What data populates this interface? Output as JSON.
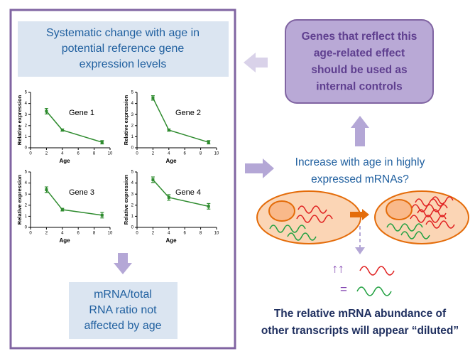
{
  "left_panel": {
    "title_lines": [
      "Systematic change with age in",
      "potential reference gene",
      "expression levels"
    ],
    "result_lines": [
      "mRNA/total",
      "RNA ratio not",
      "affected by age"
    ]
  },
  "chart_data": [
    {
      "type": "line",
      "title": "Gene 1",
      "x_label": "Age",
      "y_label": "Relative expression",
      "x": [
        2,
        4,
        9
      ],
      "values": [
        3.3,
        1.6,
        0.5
      ],
      "errors": [
        0.25,
        0.1,
        0.15
      ],
      "color": "#2e8b2e",
      "xlim": [
        0,
        10
      ],
      "ylim": [
        0,
        5
      ],
      "xticks": [
        0,
        2,
        4,
        6,
        8,
        10
      ],
      "yticks": [
        0,
        1,
        2,
        3,
        4,
        5
      ]
    },
    {
      "type": "line",
      "title": "Gene 2",
      "x_label": "Age",
      "y_label": "Relative expression",
      "x": [
        2,
        4,
        9
      ],
      "values": [
        4.5,
        1.6,
        0.5
      ],
      "errors": [
        0.2,
        0.1,
        0.15
      ],
      "color": "#2e8b2e",
      "xlim": [
        0,
        10
      ],
      "ylim": [
        0,
        5
      ],
      "xticks": [
        0,
        2,
        4,
        6,
        8,
        10
      ],
      "yticks": [
        0,
        1,
        2,
        3,
        4,
        5
      ]
    },
    {
      "type": "line",
      "title": "Gene 3",
      "x_label": "Age",
      "y_label": "Relative expression",
      "x": [
        2,
        4,
        9
      ],
      "values": [
        3.4,
        1.6,
        1.1
      ],
      "errors": [
        0.25,
        0.12,
        0.25
      ],
      "color": "#2e8b2e",
      "xlim": [
        0,
        10
      ],
      "ylim": [
        0,
        5
      ],
      "xticks": [
        0,
        2,
        4,
        6,
        8,
        10
      ],
      "yticks": [
        0,
        1,
        2,
        3,
        4,
        5
      ]
    },
    {
      "type": "line",
      "title": "Gene 4",
      "x_label": "Age",
      "y_label": "Relative expression",
      "x": [
        2,
        4,
        9
      ],
      "values": [
        4.3,
        2.7,
        1.9
      ],
      "errors": [
        0.25,
        0.25,
        0.25
      ],
      "color": "#2e8b2e",
      "xlim": [
        0,
        10
      ],
      "ylim": [
        0,
        5
      ],
      "xticks": [
        0,
        2,
        4,
        6,
        8,
        10
      ],
      "yticks": [
        0,
        1,
        2,
        3,
        4,
        5
      ]
    }
  ],
  "right_panel": {
    "conclusion_lines": [
      "Genes that reflect this",
      "age-related effect",
      "should be used as",
      "internal controls"
    ],
    "question_lines": [
      "Increase with age in highly",
      "expressed mRNAs?"
    ],
    "increase_symbol": "↑↑",
    "equal_symbol": "=",
    "footer_lines": [
      "The relative mRNA abundance of",
      "other transcripts will appear “diluted”"
    ]
  }
}
